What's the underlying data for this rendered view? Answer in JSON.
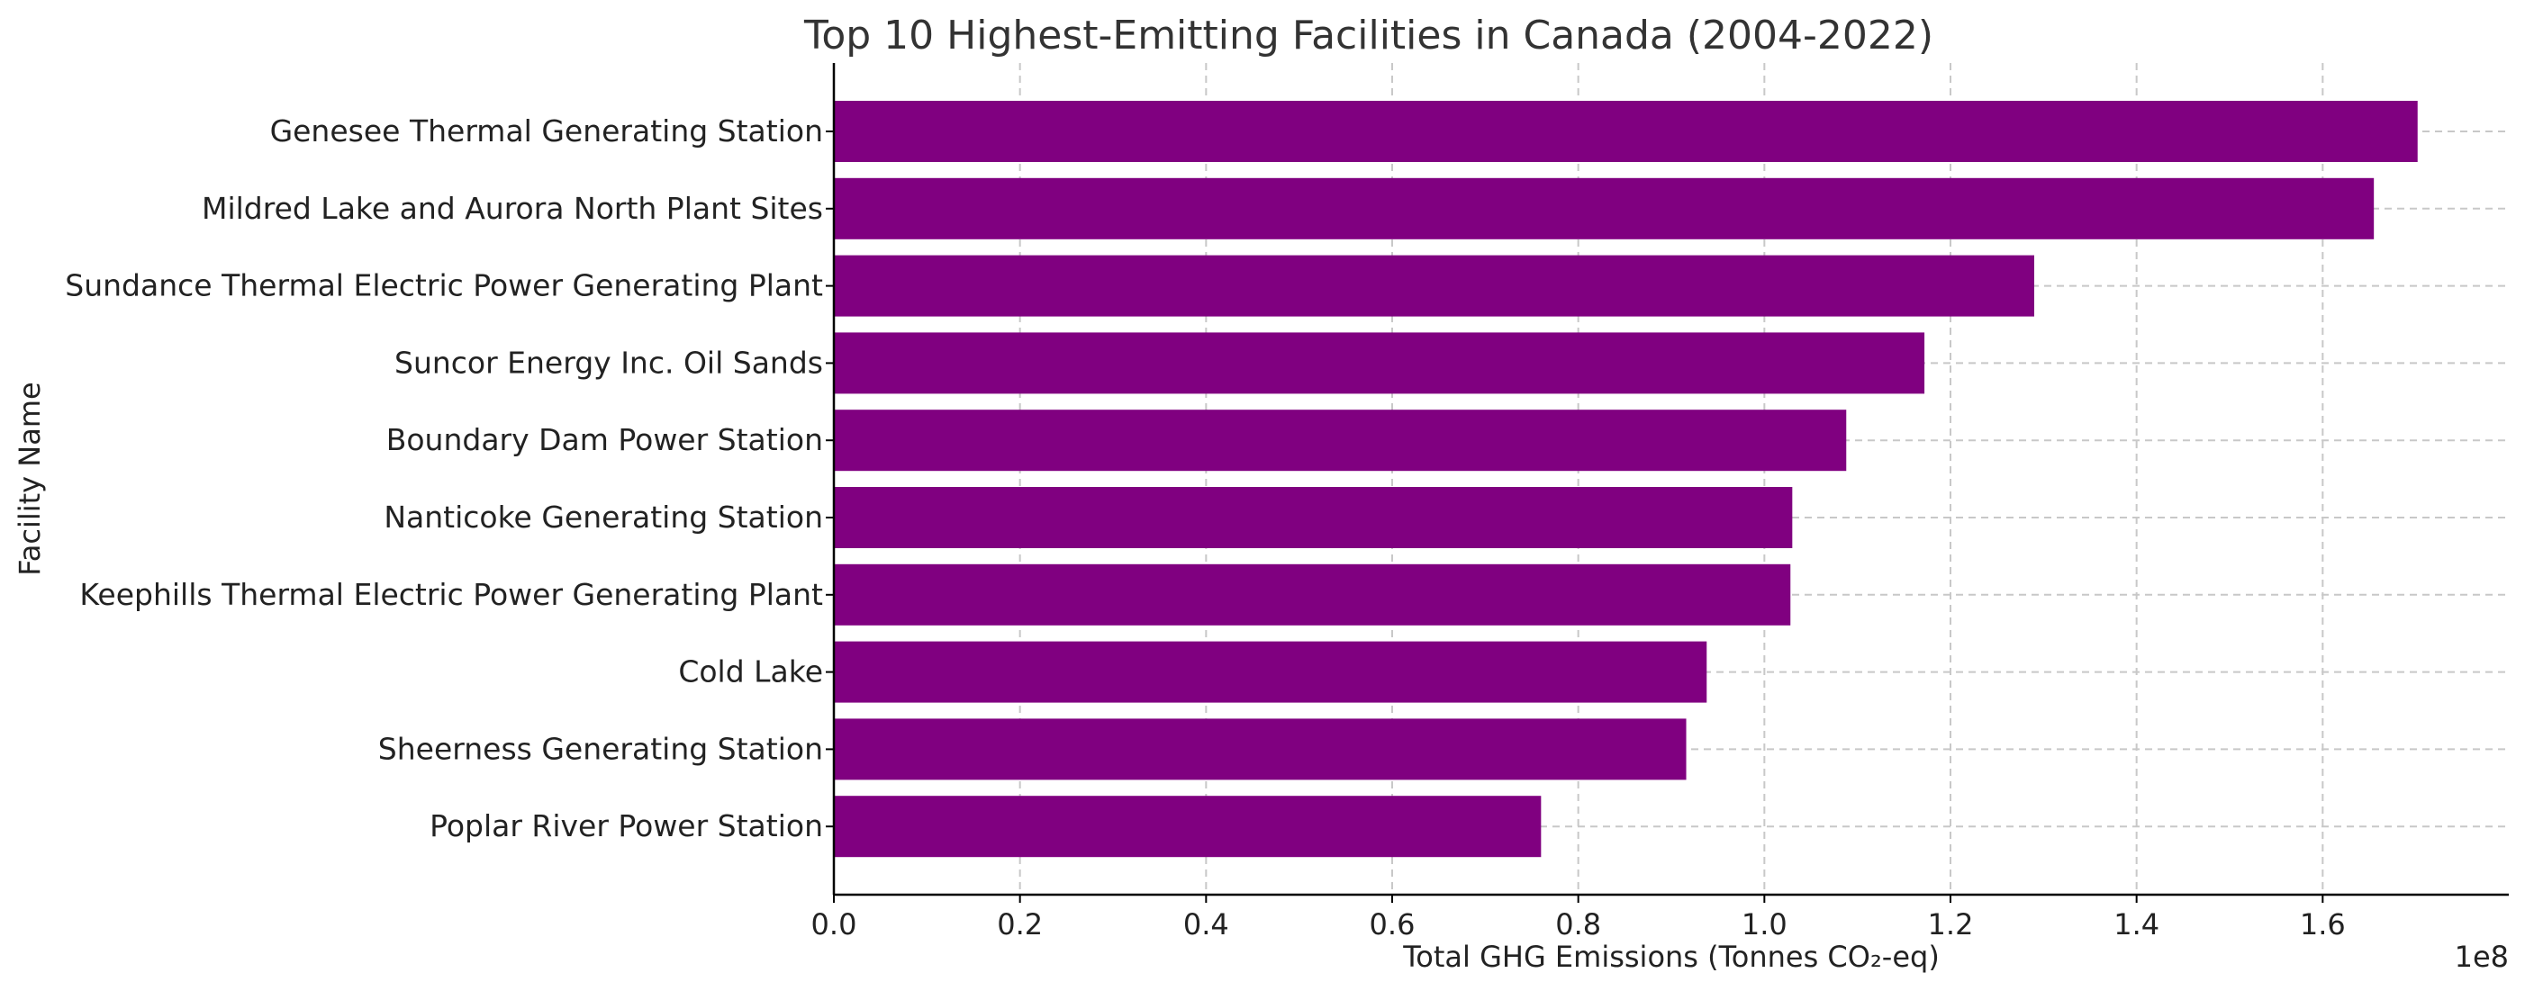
{
  "chart_data": {
    "type": "bar",
    "orientation": "horizontal",
    "title": "Top 10 Highest-Emitting Facilities in Canada (2004-2022)",
    "xlabel": "Total GHG Emissions (Tonnes CO₂-eq)",
    "ylabel": "Facility Name",
    "x_scale_label": "1e8",
    "xlim": [
      0,
      1.8
    ],
    "x_ticks": [
      0.0,
      0.2,
      0.4,
      0.6,
      0.8,
      1.0,
      1.2,
      1.4,
      1.6
    ],
    "x_tick_labels": [
      "0.0",
      "0.2",
      "0.4",
      "0.6",
      "0.8",
      "1.0",
      "1.2",
      "1.4",
      "1.6"
    ],
    "grid": true,
    "bar_color": "#800080",
    "categories": [
      "Genesee Thermal Generating Station",
      "Mildred Lake and Aurora North Plant Sites",
      "Sundance Thermal Electric Power Generating Plant",
      "Suncor Energy Inc. Oil Sands",
      "Boundary Dam Power Station",
      "Nanticoke Generating Station",
      "Keephills Thermal Electric Power Generating Plant",
      "Cold Lake",
      "Sheerness Generating Station",
      "Poplar River Power Station"
    ],
    "values": [
      1.702,
      1.655,
      1.29,
      1.172,
      1.088,
      1.03,
      1.028,
      0.938,
      0.916,
      0.76
    ]
  }
}
